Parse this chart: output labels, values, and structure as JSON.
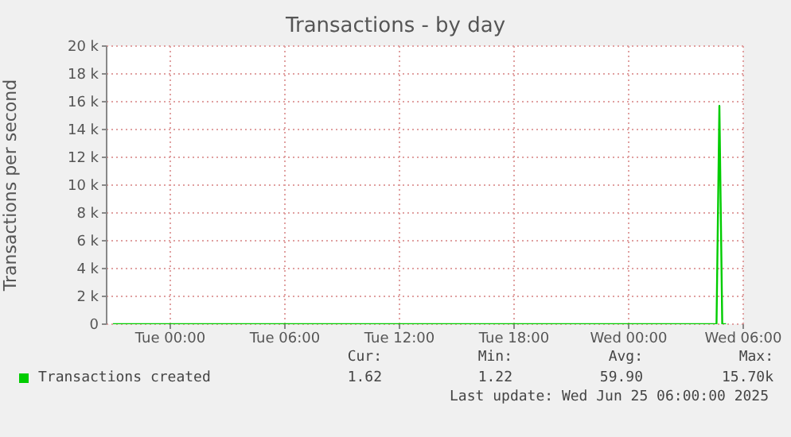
{
  "chart_data": {
    "type": "line",
    "title": "Transactions - by day",
    "ylabel": "Transactions per second",
    "x": [
      "2025-06-23T21:00",
      "2025-06-23T23:00",
      "2025-06-24T01:00",
      "2025-06-24T03:00",
      "2025-06-24T05:00",
      "2025-06-24T07:00",
      "2025-06-24T09:00",
      "2025-06-24T11:00",
      "2025-06-24T13:00",
      "2025-06-24T15:00",
      "2025-06-24T17:00",
      "2025-06-24T19:00",
      "2025-06-24T21:00",
      "2025-06-24T23:00",
      "2025-06-25T01:00",
      "2025-06-25T03:00",
      "2025-06-25T04:36",
      "2025-06-25T04:45",
      "2025-06-25T04:54",
      "2025-06-25T05:06"
    ],
    "series": [
      {
        "name": "Transactions created",
        "color": "#00cc00",
        "values": [
          0,
          0,
          0,
          0,
          0,
          0,
          0,
          0,
          0,
          0,
          0,
          0,
          0,
          0,
          0,
          0,
          0,
          15700,
          0,
          0
        ]
      }
    ],
    "xlim": [
      "2025-06-23T20:40",
      "2025-06-25T06:00"
    ],
    "xticks": [
      {
        "value": "2025-06-24T00:00",
        "label": "Tue 00:00"
      },
      {
        "value": "2025-06-24T06:00",
        "label": "Tue 06:00"
      },
      {
        "value": "2025-06-24T12:00",
        "label": "Tue 12:00"
      },
      {
        "value": "2025-06-24T18:00",
        "label": "Tue 18:00"
      },
      {
        "value": "2025-06-25T00:00",
        "label": "Wed 00:00"
      },
      {
        "value": "2025-06-25T06:00",
        "label": "Wed 06:00"
      }
    ],
    "ylim": [
      0,
      20000
    ],
    "yticks": [
      {
        "value": 0,
        "label": "0"
      },
      {
        "value": 2000,
        "label": "2 k"
      },
      {
        "value": 4000,
        "label": "4 k"
      },
      {
        "value": 6000,
        "label": "6 k"
      },
      {
        "value": 8000,
        "label": "8 k"
      },
      {
        "value": 10000,
        "label": "10 k"
      },
      {
        "value": 12000,
        "label": "12 k"
      },
      {
        "value": 14000,
        "label": "14 k"
      },
      {
        "value": 16000,
        "label": "16 k"
      },
      {
        "value": 18000,
        "label": "18 k"
      },
      {
        "value": 20000,
        "label": "20 k"
      }
    ],
    "grid": true,
    "legend": "bottom left",
    "marker": "none",
    "line_style": "solid",
    "annotations": [
      "Cur:",
      "Min:",
      "Avg:",
      "Max:",
      "1.62",
      "1.22",
      "59.90",
      "15.70k",
      "Last update: Wed Jun 25 06:00:00 2025"
    ]
  }
}
